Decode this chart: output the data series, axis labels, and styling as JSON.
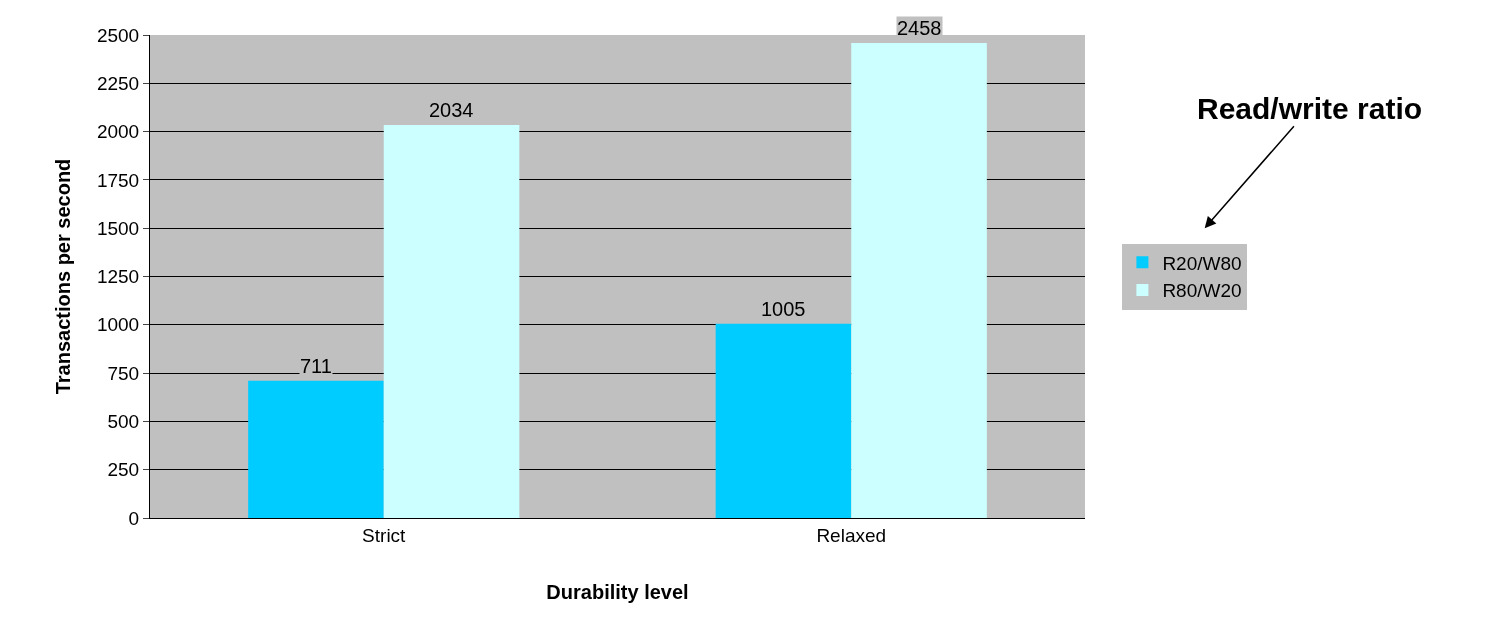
{
  "chart_data": {
    "type": "bar",
    "xlabel": "Durability level",
    "ylabel": "Transactions per second",
    "categories": [
      "Strict",
      "Relaxed"
    ],
    "series": [
      {
        "name": "R20/W80",
        "color": "#00ccff",
        "values": [
          711,
          1005
        ]
      },
      {
        "name": "R80/W20",
        "color": "#ccffff",
        "values": [
          2034,
          2458
        ]
      }
    ],
    "ylim": [
      0,
      2500
    ],
    "yticks": [
      0,
      250,
      500,
      750,
      1000,
      1250,
      1500,
      1750,
      2000,
      2250,
      2500
    ],
    "grid": "y",
    "legend": "right",
    "data_labels": true,
    "annotations": [
      "Read/write ratio"
    ]
  }
}
